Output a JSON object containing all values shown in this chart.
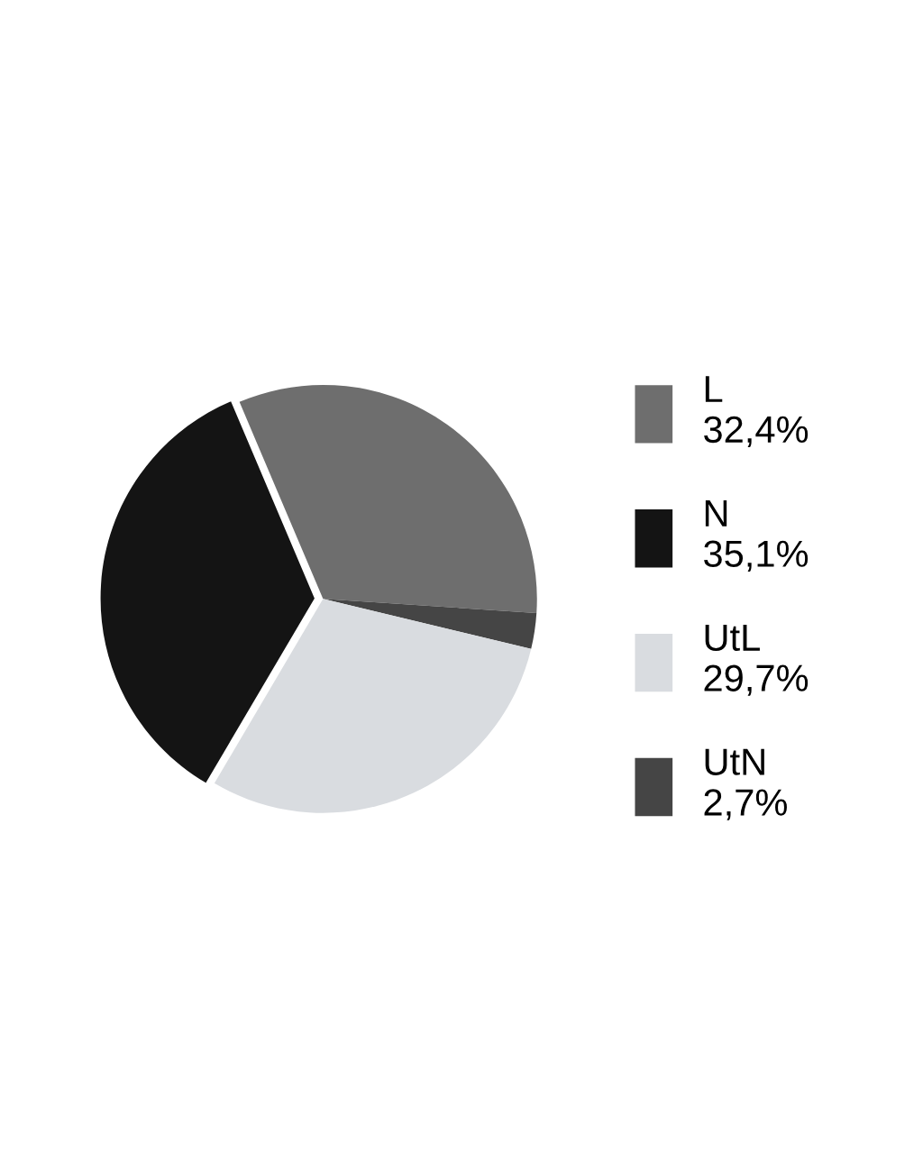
{
  "chart_data": {
    "type": "pie",
    "categories": [
      "L",
      "N",
      "UtL",
      "UtN"
    ],
    "values": [
      32.4,
      35.1,
      29.7,
      2.7
    ],
    "value_labels": [
      "32,4%",
      "35,1%",
      "29,7%",
      "2,7%"
    ],
    "colors": [
      "#6e6e6e",
      "#141414",
      "#d9dce0",
      "#454545"
    ],
    "legend": "right"
  }
}
